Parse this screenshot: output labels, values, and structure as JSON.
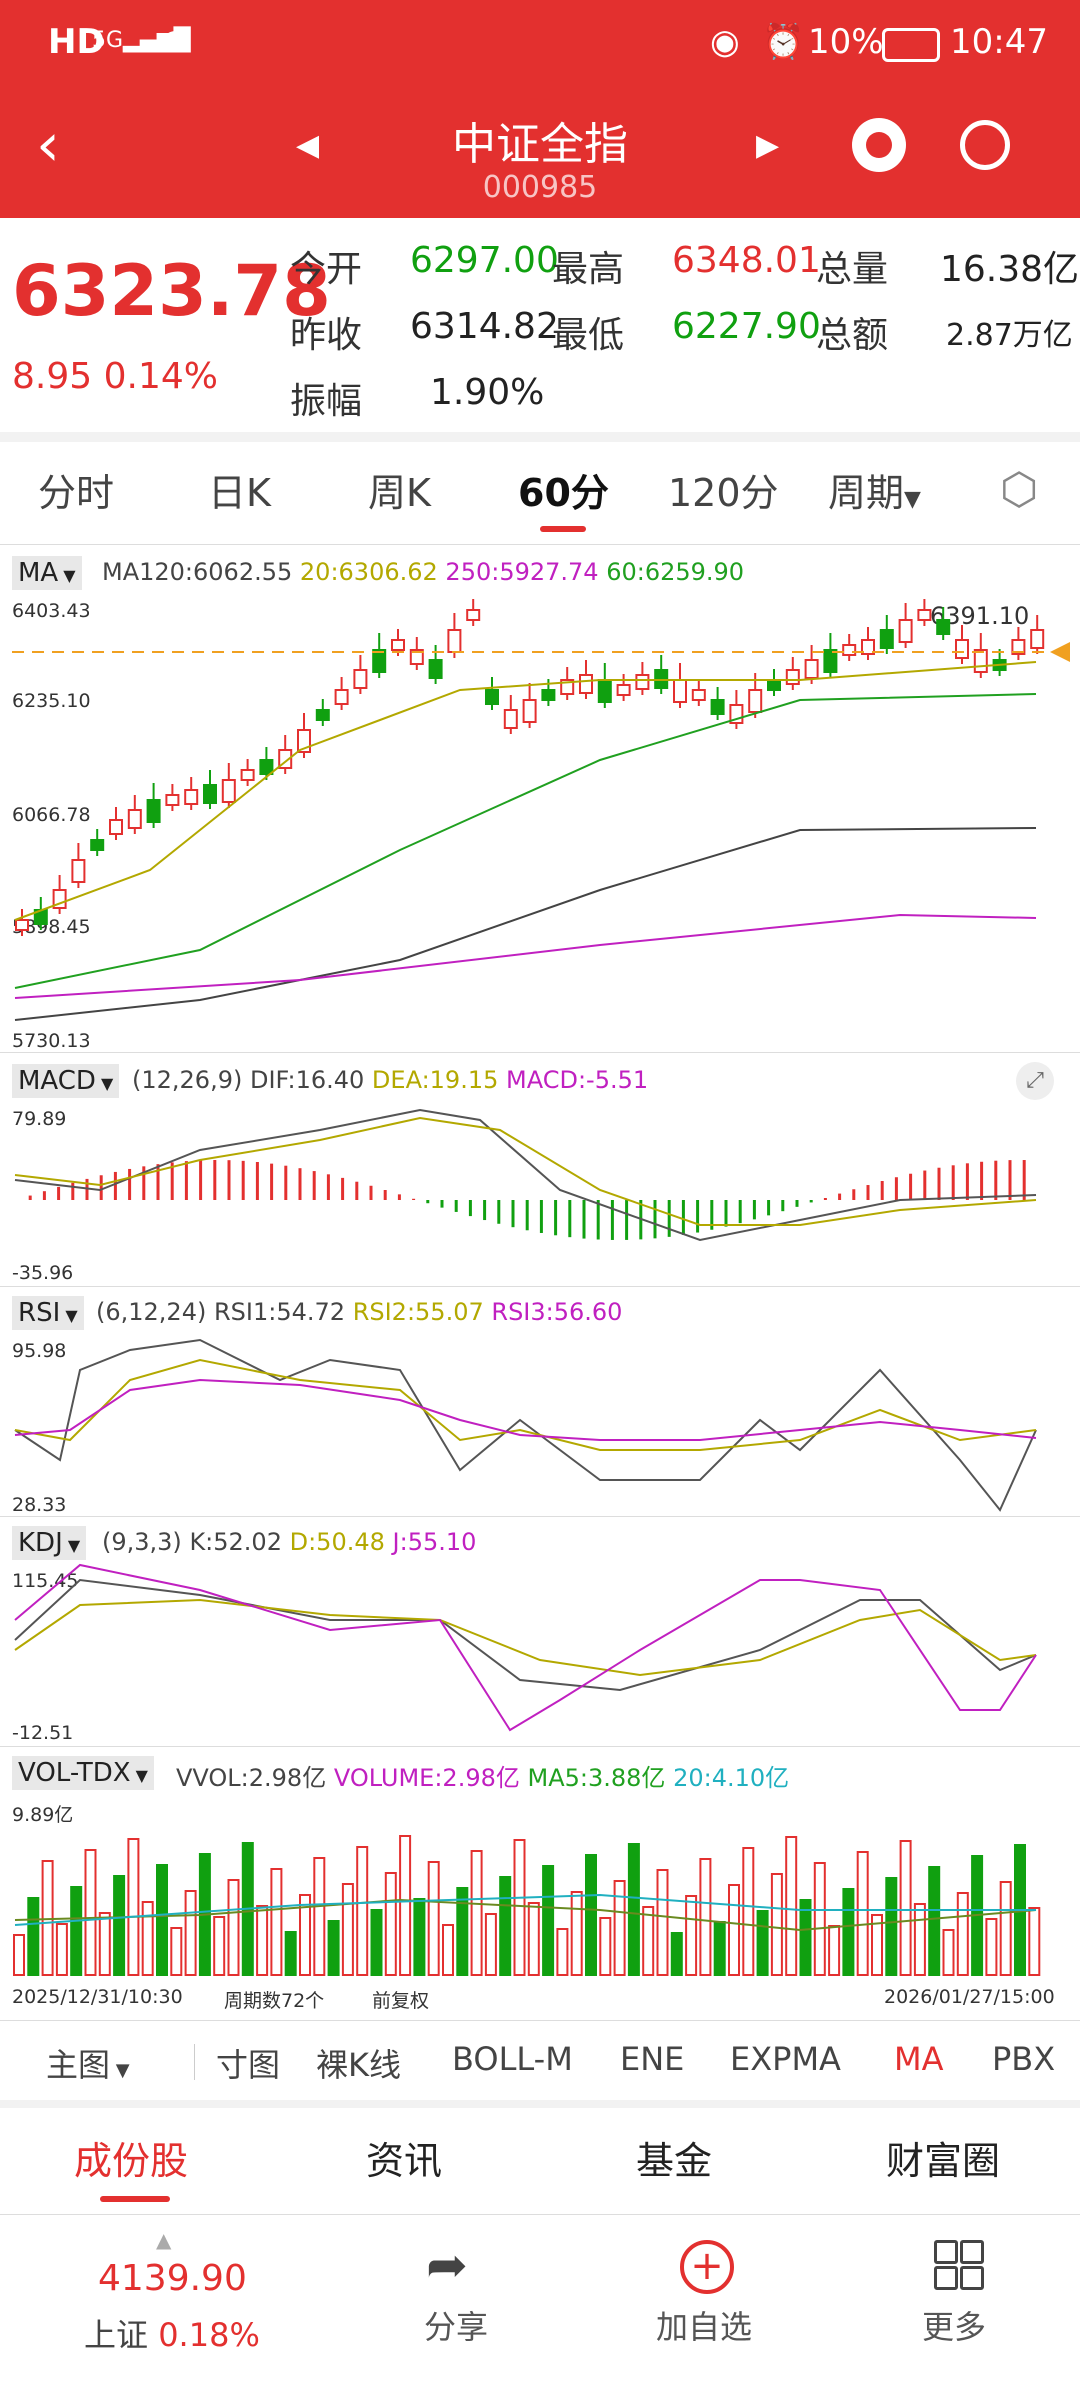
{
  "status_bar": {
    "left_icons": [
      "hd-icon",
      "5g-signal-icon",
      "wifi-icon"
    ],
    "battery": "10%",
    "time": "10:47"
  },
  "header": {
    "title": "中证全指",
    "code": "000985"
  },
  "quote": {
    "price": "6323.78",
    "change": "8.95",
    "change_pct": "0.14%",
    "fields": [
      {
        "label": "今开",
        "value": "6297.00",
        "color": "green"
      },
      {
        "label": "最高",
        "value": "6348.01",
        "color": "red"
      },
      {
        "label": "总量",
        "value": "16.38亿",
        "color": "dark"
      },
      {
        "label": "昨收",
        "value": "6314.82",
        "color": "dark"
      },
      {
        "label": "最低",
        "value": "6227.90",
        "color": "green"
      },
      {
        "label": "总额",
        "value": "2.87万亿",
        "color": "dark"
      },
      {
        "label": "振幅",
        "value": "1.90%",
        "color": "dark"
      }
    ]
  },
  "tabs": [
    "分时",
    "日K",
    "周K",
    "60分",
    "120分",
    "周期"
  ],
  "active_tab": "60分",
  "main_chart": {
    "tag": "MA",
    "ma_labels": [
      "MA120:6062.55",
      "20:6306.62",
      "250:5927.74",
      "60:6259.90"
    ],
    "y_ticks": [
      "6403.43",
      "6235.10",
      "6066.78",
      "5898.45",
      "5730.13"
    ],
    "high_label": "6391.10"
  },
  "macd": {
    "tag": "MACD",
    "params": "(12,26,9)",
    "dif": "DIF:16.40",
    "dea": "DEA:19.15",
    "macd": "MACD:-5.51",
    "top": "79.89",
    "bottom": "-35.96"
  },
  "rsi": {
    "tag": "RSI",
    "params": "(6,12,24)",
    "rsi1": "RSI1:54.72",
    "rsi2": "RSI2:55.07",
    "rsi3": "RSI3:56.60",
    "top": "95.98",
    "bottom": "28.33"
  },
  "kdj": {
    "tag": "KDJ",
    "params": "(9,3,3)",
    "k": "K:52.02",
    "d": "D:50.48",
    "j": "J:55.10",
    "top": "115.45",
    "bottom": "-12.51"
  },
  "vol": {
    "tag": "VOL-TDX",
    "vvol": "VVOL:2.98亿",
    "volume": "VOLUME:2.98亿",
    "ma5": "MA5:3.88亿",
    "ma20": "20:4.10亿",
    "top": "9.89亿"
  },
  "footer_info": {
    "start": "2025/12/31/10:30",
    "count": "周期数72个",
    "adjust": "前复权",
    "end": "2026/01/27/15:00"
  },
  "toolbar": [
    "主图",
    "寸图",
    "裸K线",
    "BOLL-M",
    "ENE",
    "EXPMA",
    "MA",
    "PBX"
  ],
  "subtabs": [
    "成份股",
    "资讯",
    "基金",
    "财富圈"
  ],
  "bottom_nav": {
    "index_value": "4139.90",
    "index_name": "上证",
    "index_pct": "0.18%",
    "share": "分享",
    "add": "加自选",
    "more": "更多"
  }
}
